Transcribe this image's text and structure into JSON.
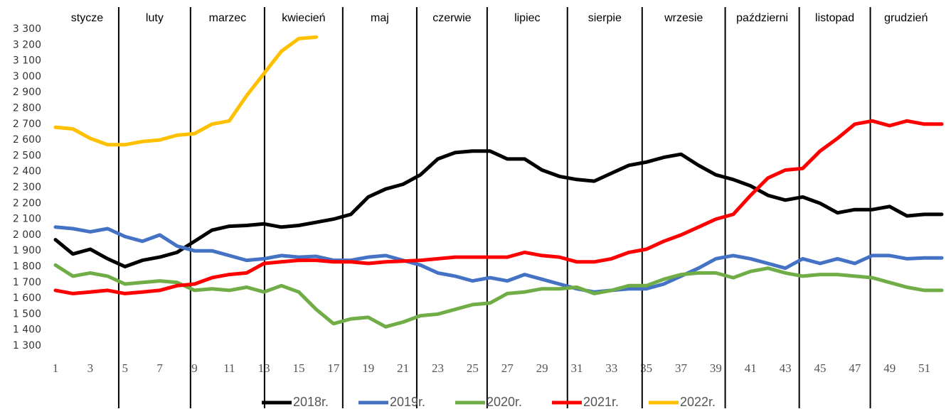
{
  "chart_data": {
    "type": "line",
    "annotations": [
      "stycze",
      "luty",
      "marzec",
      "kwiecień",
      "maj",
      "czerwie",
      "lipiec",
      "sierpie",
      "wrzesie",
      "październi",
      "listopad",
      "grudzień"
    ],
    "month_dividers": [
      4.64,
      8.77,
      13.03,
      17.53,
      21.79,
      25.84,
      30.46,
      34.76,
      39.54,
      43.8,
      47.89
    ],
    "x": [
      1,
      2,
      3,
      4,
      5,
      6,
      7,
      8,
      9,
      10,
      11,
      12,
      13,
      14,
      15,
      16,
      17,
      18,
      19,
      20,
      21,
      22,
      23,
      24,
      25,
      26,
      27,
      28,
      29,
      30,
      31,
      32,
      33,
      34,
      35,
      36,
      37,
      38,
      39,
      40,
      41,
      42,
      43,
      44,
      45,
      46,
      47,
      48,
      49,
      50,
      51,
      52
    ],
    "xlim": [
      1,
      52
    ],
    "xticks": [
      1,
      3,
      5,
      7,
      9,
      11,
      13,
      15,
      17,
      19,
      21,
      23,
      25,
      27,
      29,
      31,
      33,
      35,
      37,
      39,
      41,
      43,
      45,
      47,
      49,
      51
    ],
    "ylim": [
      1300,
      3300
    ],
    "yticks": [
      {
        "value": 1300,
        "label": "1 300"
      },
      {
        "value": 1400,
        "label": "1 400"
      },
      {
        "value": 1500,
        "label": "1 500"
      },
      {
        "value": 1600,
        "label": "1 600"
      },
      {
        "value": 1700,
        "label": "1 700"
      },
      {
        "value": 1800,
        "label": "1 800"
      },
      {
        "value": 1900,
        "label": "1 900"
      },
      {
        "value": 2000,
        "label": "2 000"
      },
      {
        "value": 2100,
        "label": "2 100"
      },
      {
        "value": 2200,
        "label": "2 200"
      },
      {
        "value": 2300,
        "label": "2 300"
      },
      {
        "value": 2400,
        "label": "2 400"
      },
      {
        "value": 2500,
        "label": "2 500"
      },
      {
        "value": 2600,
        "label": "2 600"
      },
      {
        "value": 2700,
        "label": "2 700"
      },
      {
        "value": 2800,
        "label": "2 800"
      },
      {
        "value": 2900,
        "label": "2 900"
      },
      {
        "value": 3000,
        "label": "3 000"
      },
      {
        "value": 3100,
        "label": "3 100"
      },
      {
        "value": 3200,
        "label": "3 200"
      },
      {
        "value": 3300,
        "label": "3 300"
      }
    ],
    "grid": false,
    "series": [
      {
        "name": "2018r.",
        "color": "#000000",
        "values": [
          1970,
          1880,
          1910,
          1850,
          1800,
          1840,
          1860,
          1890,
          1960,
          2030,
          2055,
          2060,
          2070,
          2050,
          2060,
          2080,
          2100,
          2130,
          2240,
          2290,
          2320,
          2380,
          2480,
          2520,
          2530,
          2530,
          2480,
          2480,
          2410,
          2370,
          2350,
          2340,
          2390,
          2440,
          2460,
          2490,
          2510,
          2440,
          2380,
          2350,
          2310,
          2250,
          2220,
          2240,
          2200,
          2140,
          2160,
          2160,
          2180,
          2120,
          2130,
          2130
        ]
      },
      {
        "name": "2019r.",
        "color": "#4472c4",
        "values": [
          2050,
          2040,
          2020,
          2040,
          1990,
          1960,
          2000,
          1930,
          1900,
          1900,
          1870,
          1840,
          1850,
          1870,
          1860,
          1865,
          1840,
          1840,
          1860,
          1870,
          1840,
          1810,
          1760,
          1740,
          1710,
          1730,
          1710,
          1750,
          1720,
          1690,
          1660,
          1640,
          1650,
          1660,
          1660,
          1690,
          1740,
          1790,
          1850,
          1870,
          1850,
          1820,
          1790,
          1850,
          1820,
          1850,
          1820,
          1870,
          1870,
          1850,
          1855,
          1855
        ]
      },
      {
        "name": "2020r.",
        "color": "#70ad47",
        "values": [
          1810,
          1740,
          1760,
          1740,
          1690,
          1700,
          1710,
          1700,
          1650,
          1660,
          1650,
          1670,
          1640,
          1680,
          1640,
          1530,
          1440,
          1470,
          1480,
          1420,
          1450,
          1490,
          1500,
          1530,
          1560,
          1570,
          1630,
          1640,
          1660,
          1660,
          1670,
          1630,
          1650,
          1680,
          1680,
          1720,
          1750,
          1760,
          1760,
          1730,
          1770,
          1790,
          1760,
          1740,
          1750,
          1750,
          1740,
          1730,
          1700,
          1670,
          1650,
          1650
        ]
      },
      {
        "name": "2021r.",
        "color": "#ff0000",
        "values": [
          1650,
          1630,
          1640,
          1650,
          1630,
          1640,
          1650,
          1680,
          1690,
          1730,
          1750,
          1760,
          1820,
          1830,
          1840,
          1840,
          1830,
          1830,
          1820,
          1830,
          1835,
          1840,
          1850,
          1860,
          1860,
          1860,
          1860,
          1890,
          1870,
          1860,
          1830,
          1830,
          1850,
          1890,
          1910,
          1960,
          2000,
          2050,
          2100,
          2130,
          2250,
          2360,
          2410,
          2420,
          2530,
          2610,
          2700,
          2720,
          2690,
          2720,
          2700,
          2700
        ]
      },
      {
        "name": "2022r.",
        "color": "#ffc000",
        "values": [
          2680,
          2670,
          2610,
          2570,
          2570,
          2590,
          2600,
          2630,
          2640,
          2700,
          2720,
          2880,
          3020,
          3160,
          3240,
          3250,
          null,
          null,
          null,
          null,
          null,
          null,
          null,
          null,
          null,
          null,
          null,
          null,
          null,
          null,
          null,
          null,
          null,
          null,
          null,
          null,
          null,
          null,
          null,
          null,
          null,
          null,
          null,
          null,
          null,
          null,
          null,
          null,
          null,
          null,
          null,
          null
        ]
      }
    ]
  }
}
